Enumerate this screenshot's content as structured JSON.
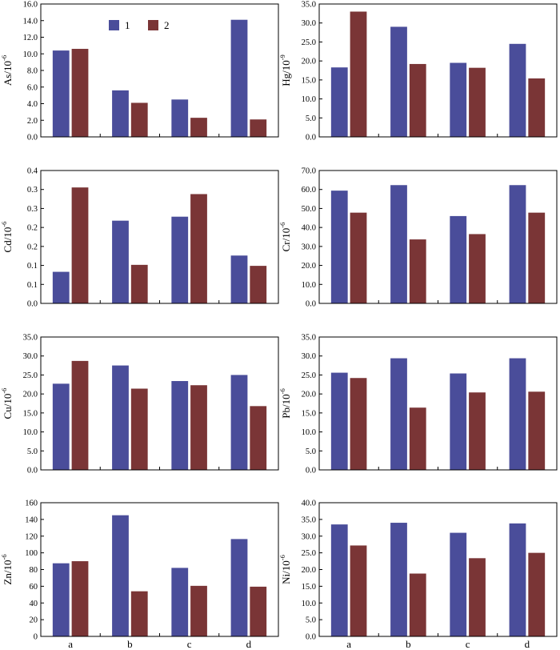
{
  "series_colors": {
    "1": "#4a4d9a",
    "2": "#7a3536"
  },
  "legend": [
    {
      "name": "1",
      "color": "#4a4d9a"
    },
    {
      "name": "2",
      "color": "#7a3536"
    }
  ],
  "chart_data": [
    {
      "type": "bar",
      "id": "as",
      "ylabel_base": "As/10",
      "ylabel_exp": "-6",
      "categories": [
        "a",
        "b",
        "c",
        "d"
      ],
      "ylim": [
        0,
        16
      ],
      "ticks": [
        "0.0",
        "2.0",
        "4.0",
        "6.0",
        "8.0",
        "10.0",
        "12.0",
        "14.0",
        "16.0"
      ],
      "series": [
        {
          "name": "1",
          "values": [
            10.4,
            5.6,
            4.5,
            14.1
          ]
        },
        {
          "name": "2",
          "values": [
            10.6,
            4.1,
            2.3,
            2.1
          ]
        }
      ]
    },
    {
      "type": "bar",
      "id": "hg",
      "ylabel_base": "Hg/10",
      "ylabel_exp": "-9",
      "categories": [
        "a",
        "b",
        "c",
        "d"
      ],
      "ylim": [
        0,
        35
      ],
      "ticks": [
        "0.0",
        "5.0",
        "10.0",
        "15.0",
        "20.0",
        "25.0",
        "30.0",
        "35.0"
      ],
      "series": [
        {
          "name": "1",
          "values": [
            18.3,
            29.0,
            19.5,
            24.5
          ]
        },
        {
          "name": "2",
          "values": [
            33.0,
            19.2,
            18.2,
            15.4
          ]
        }
      ]
    },
    {
      "type": "bar",
      "id": "cd",
      "ylabel_base": "Cd/10",
      "ylabel_exp": "-6",
      "categories": [
        "a",
        "b",
        "c",
        "d"
      ],
      "ylim": [
        0,
        0.4
      ],
      "ticks": [
        "0.0",
        "0.1",
        "0.1",
        "0.2",
        "0.2",
        "0.3",
        "0.3",
        "0.4"
      ],
      "series": [
        {
          "name": "1",
          "values": [
            0.095,
            0.249,
            0.261,
            0.144
          ]
        },
        {
          "name": "2",
          "values": [
            0.349,
            0.116,
            0.329,
            0.113
          ]
        }
      ]
    },
    {
      "type": "bar",
      "id": "cr",
      "ylabel_base": "Cr/10",
      "ylabel_exp": "-6",
      "categories": [
        "a",
        "b",
        "c",
        "d"
      ],
      "ylim": [
        0,
        70
      ],
      "ticks": [
        "0.0",
        "10.0",
        "20.0",
        "30.0",
        "40.0",
        "50.0",
        "60.0",
        "70.0"
      ],
      "series": [
        {
          "name": "1",
          "values": [
            59.4,
            62.3,
            46.0,
            62.3
          ]
        },
        {
          "name": "2",
          "values": [
            47.8,
            33.7,
            36.5,
            47.8
          ]
        }
      ]
    },
    {
      "type": "bar",
      "id": "cu",
      "ylabel_base": "Cu/10",
      "ylabel_exp": "-6",
      "categories": [
        "a",
        "b",
        "c",
        "d"
      ],
      "ylim": [
        0,
        35
      ],
      "ticks": [
        "0.0",
        "5.0",
        "10.0",
        "15.0",
        "20.0",
        "25.0",
        "30.0",
        "35.0"
      ],
      "series": [
        {
          "name": "1",
          "values": [
            22.7,
            27.5,
            23.4,
            25.0
          ]
        },
        {
          "name": "2",
          "values": [
            28.7,
            21.4,
            22.3,
            16.8
          ]
        }
      ]
    },
    {
      "type": "bar",
      "id": "pb",
      "ylabel_base": "Pb/10",
      "ylabel_exp": "-6",
      "categories": [
        "a",
        "b",
        "c",
        "d"
      ],
      "ylim": [
        0,
        35
      ],
      "ticks": [
        "0.0",
        "5.0",
        "10.0",
        "15.0",
        "20.0",
        "25.0",
        "30.0",
        "35.0"
      ],
      "series": [
        {
          "name": "1",
          "values": [
            25.6,
            29.4,
            25.4,
            29.4
          ]
        },
        {
          "name": "2",
          "values": [
            24.2,
            16.4,
            20.4,
            20.6
          ]
        }
      ]
    },
    {
      "type": "bar",
      "id": "zn",
      "ylabel_base": "Zn/10",
      "ylabel_exp": "-6",
      "categories": [
        "a",
        "b",
        "c",
        "d"
      ],
      "ylim": [
        0,
        160
      ],
      "ticks": [
        "0",
        "20",
        "40",
        "60",
        "80",
        "100",
        "120",
        "140",
        "160"
      ],
      "series": [
        {
          "name": "1",
          "values": [
            87.5,
            145.0,
            82.0,
            116.5
          ]
        },
        {
          "name": "2",
          "values": [
            90.0,
            54.0,
            60.5,
            59.5
          ]
        }
      ]
    },
    {
      "type": "bar",
      "id": "ni",
      "ylabel_base": "Ni/10",
      "ylabel_exp": "-6",
      "categories": [
        "a",
        "b",
        "c",
        "d"
      ],
      "ylim": [
        0,
        40
      ],
      "ticks": [
        "0.0",
        "5.0",
        "10.0",
        "15.0",
        "20.0",
        "25.0",
        "30.0",
        "35.0",
        "40.0"
      ],
      "series": [
        {
          "name": "1",
          "values": [
            33.5,
            34.0,
            31.0,
            33.8
          ]
        },
        {
          "name": "2",
          "values": [
            27.2,
            18.8,
            23.4,
            25.0
          ]
        }
      ]
    }
  ]
}
